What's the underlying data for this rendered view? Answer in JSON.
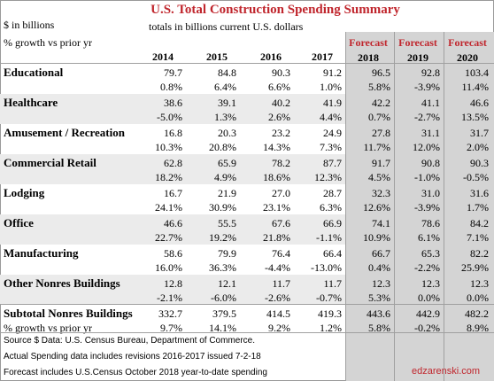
{
  "title": "U.S. Total Construction Spending Summary",
  "unit_label": "$ in billions",
  "growth_label": "% growth vs prior yr",
  "subtitle": "totals in billions current U.S. dollars",
  "forecast_label": "Forecast",
  "years": [
    "2014",
    "2015",
    "2016",
    "2017",
    "2018",
    "2019",
    "2020"
  ],
  "rows": [
    {
      "label": "Educational",
      "values": [
        "79.7",
        "84.8",
        "90.3",
        "91.2",
        "96.5",
        "92.8",
        "103.4"
      ],
      "growth": [
        "0.8%",
        "6.4%",
        "6.6%",
        "1.0%",
        "5.8%",
        "-3.9%",
        "11.4%"
      ]
    },
    {
      "label": "Healthcare",
      "values": [
        "38.6",
        "39.1",
        "40.2",
        "41.9",
        "42.2",
        "41.1",
        "46.6"
      ],
      "growth": [
        "-5.0%",
        "1.3%",
        "2.6%",
        "4.4%",
        "0.7%",
        "-2.7%",
        "13.5%"
      ]
    },
    {
      "label": "Amusement / Recreation",
      "values": [
        "16.8",
        "20.3",
        "23.2",
        "24.9",
        "27.8",
        "31.1",
        "31.7"
      ],
      "growth": [
        "10.3%",
        "20.8%",
        "14.3%",
        "7.3%",
        "11.7%",
        "12.0%",
        "2.0%"
      ]
    },
    {
      "label": "Commercial Retail",
      "values": [
        "62.8",
        "65.9",
        "78.2",
        "87.7",
        "91.7",
        "90.8",
        "90.3"
      ],
      "growth": [
        "18.2%",
        "4.9%",
        "18.6%",
        "12.3%",
        "4.5%",
        "-1.0%",
        "-0.5%"
      ]
    },
    {
      "label": "Lodging",
      "values": [
        "16.7",
        "21.9",
        "27.0",
        "28.7",
        "32.3",
        "31.0",
        "31.6"
      ],
      "growth": [
        "24.1%",
        "30.9%",
        "23.1%",
        "6.3%",
        "12.6%",
        "-3.9%",
        "1.7%"
      ]
    },
    {
      "label": "Office",
      "values": [
        "46.6",
        "55.5",
        "67.6",
        "66.9",
        "74.1",
        "78.6",
        "84.2"
      ],
      "growth": [
        "22.7%",
        "19.2%",
        "21.8%",
        "-1.1%",
        "10.9%",
        "6.1%",
        "7.1%"
      ]
    },
    {
      "label": "Manufacturing",
      "values": [
        "58.6",
        "79.9",
        "76.4",
        "66.4",
        "66.7",
        "65.3",
        "82.2"
      ],
      "growth": [
        "16.0%",
        "36.3%",
        "-4.4%",
        "-13.0%",
        "0.4%",
        "-2.2%",
        "25.9%"
      ]
    },
    {
      "label": "Other Nonres Buildings",
      "values": [
        "12.8",
        "12.1",
        "11.7",
        "11.7",
        "12.3",
        "12.3",
        "12.3"
      ],
      "growth": [
        "-2.1%",
        "-6.0%",
        "-2.6%",
        "-0.7%",
        "5.3%",
        "0.0%",
        "0.0%"
      ]
    }
  ],
  "subtotal": {
    "label": "Subtotal Nonres Buildings",
    "growth_label": "% growth vs prior yr",
    "values": [
      "332.7",
      "379.5",
      "414.5",
      "419.3",
      "443.6",
      "442.9",
      "482.2"
    ],
    "growth": [
      "9.7%",
      "14.1%",
      "9.2%",
      "1.2%",
      "5.8%",
      "-0.2%",
      "8.9%"
    ]
  },
  "notes": [
    "Source $ Data: U.S. Census Bureau, Department of Commerce.",
    "Actual Spending data includes revisions 2016-2017 issued 7-2-18",
    "Forecast includes U.S.Census October 2018 year-to-date spending"
  ],
  "watermark": "edzarenski.com",
  "colors": {
    "accent": "#c0262d",
    "forecast_bg": "#d4d4d4",
    "row_band": "#ebebeb"
  }
}
